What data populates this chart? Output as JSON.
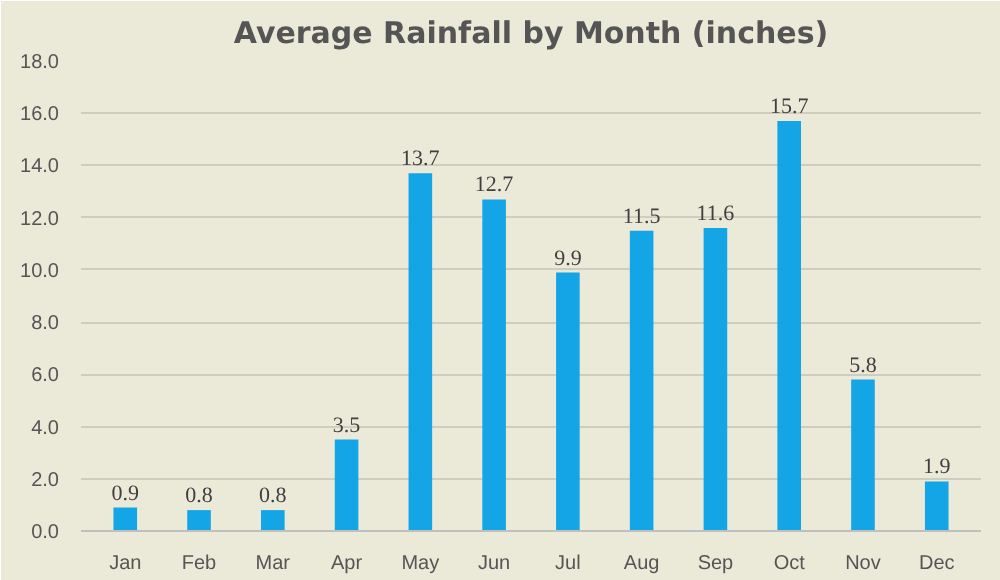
{
  "chart_data": {
    "type": "bar",
    "title": "Average Rainfall by Month (inches)",
    "categories": [
      "Jan",
      "Feb",
      "Mar",
      "Apr",
      "May",
      "Jun",
      "Jul",
      "Aug",
      "Sep",
      "Oct",
      "Nov",
      "Dec"
    ],
    "values": [
      0.9,
      0.8,
      0.8,
      3.5,
      13.7,
      12.7,
      9.9,
      11.5,
      11.6,
      15.7,
      5.8,
      1.9
    ],
    "color": "#14a5e6",
    "ylim": [
      0,
      18
    ],
    "yticks": [
      {
        "value": 0,
        "label": "0.0"
      },
      {
        "value": 2,
        "label": "2.0"
      },
      {
        "value": 4,
        "label": "4.0"
      },
      {
        "value": 6,
        "label": "6.0"
      },
      {
        "value": 8,
        "label": "8.0"
      },
      {
        "value": 10,
        "label": "10.0"
      },
      {
        "value": 12,
        "label": "12.0"
      },
      {
        "value": 14,
        "label": "14.0"
      },
      {
        "value": 16,
        "label": "16.0"
      },
      {
        "value": 18,
        "label": "18.0"
      }
    ],
    "grid": "y",
    "data_labels": true
  }
}
